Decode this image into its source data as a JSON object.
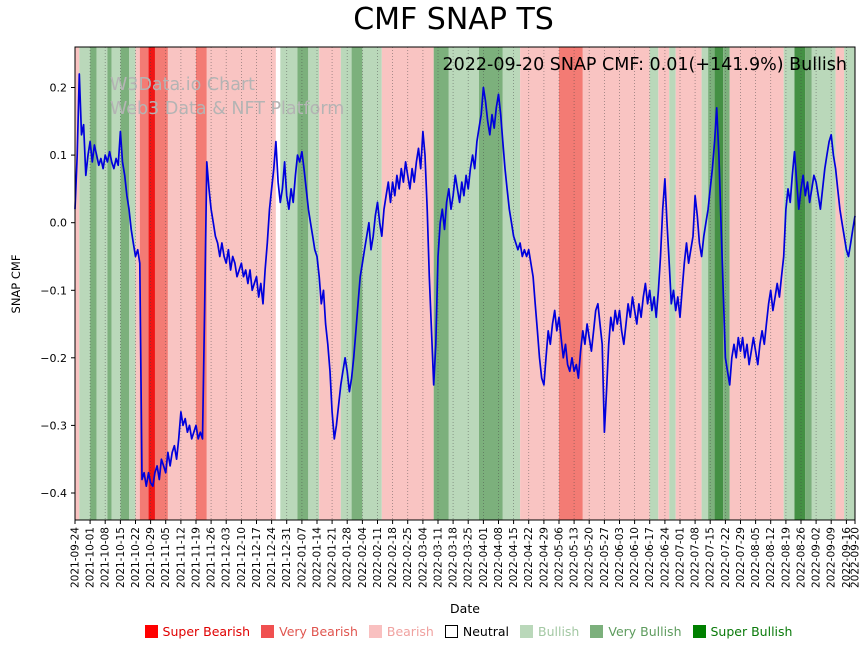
{
  "title": "CMF SNAP TS",
  "annotation": "2022-09-20 SNAP CMF: 0.01(+141.9%) Bullish",
  "watermark": {
    "line1": "W3Data.io Chart",
    "line2": "Web3 Data & NFT Platform",
    "color": "#b4b4b4"
  },
  "chart_data": {
    "type": "line",
    "title": "CMF SNAP TS",
    "xlabel": "Date",
    "ylabel": "SNAP CMF",
    "ylim": [
      -0.44,
      0.26
    ],
    "grid": "vertical-dotted-weekly",
    "line_color": "#0000dd",
    "total_days": 361,
    "y_ticks": [
      [
        "0.2",
        0.2
      ],
      [
        "0.1",
        0.1
      ],
      [
        "0.0",
        0.0
      ],
      [
        "−0.1",
        -0.1
      ],
      [
        "−0.2",
        -0.2
      ],
      [
        "−0.3",
        -0.3
      ],
      [
        "−0.4",
        -0.4
      ]
    ],
    "x_tick_days": [
      0,
      7,
      14,
      21,
      28,
      35,
      42,
      49,
      56,
      63,
      70,
      77,
      84,
      91,
      98,
      105,
      112,
      119,
      126,
      133,
      140,
      147,
      154,
      161,
      168,
      175,
      182,
      189,
      196,
      203,
      210,
      217,
      224,
      231,
      238,
      245,
      252,
      259,
      266,
      273,
      280,
      287,
      294,
      301,
      308,
      315,
      322,
      329,
      336,
      343,
      350,
      357,
      361
    ],
    "x_tick_labels": [
      "2021-09-24",
      "2021-10-01",
      "2021-10-08",
      "2021-10-15",
      "2021-10-22",
      "2021-10-29",
      "2021-11-05",
      "2021-11-12",
      "2021-11-19",
      "2021-11-26",
      "2021-12-03",
      "2021-12-10",
      "2021-12-17",
      "2021-12-24",
      "2021-12-31",
      "2022-01-07",
      "2022-01-14",
      "2022-01-21",
      "2022-01-28",
      "2022-02-04",
      "2022-02-11",
      "2022-02-18",
      "2022-02-25",
      "2022-03-04",
      "2022-03-11",
      "2022-03-18",
      "2022-03-25",
      "2022-04-01",
      "2022-04-08",
      "2022-04-15",
      "2022-04-22",
      "2022-04-29",
      "2022-05-06",
      "2022-05-13",
      "2022-05-20",
      "2022-05-27",
      "2022-06-03",
      "2022-06-10",
      "2022-06-17",
      "2022-06-24",
      "2022-07-01",
      "2022-07-08",
      "2022-07-15",
      "2022-07-22",
      "2022-07-29",
      "2022-08-05",
      "2022-08-12",
      "2022-08-19",
      "2022-08-26",
      "2022-09-02",
      "2022-09-09",
      "2022-09-16",
      "2022-09-20"
    ],
    "series": [
      {
        "name": "SNAP CMF daily",
        "x_start_day": 0,
        "values": [
          0.02,
          0.1,
          0.22,
          0.13,
          0.145,
          0.07,
          0.1,
          0.12,
          0.09,
          0.115,
          0.1,
          0.085,
          0.095,
          0.08,
          0.1,
          0.09,
          0.105,
          0.09,
          0.08,
          0.095,
          0.085,
          0.135,
          0.09,
          0.07,
          0.04,
          0.02,
          -0.01,
          -0.03,
          -0.05,
          -0.04,
          -0.06,
          -0.38,
          -0.37,
          -0.39,
          -0.37,
          -0.385,
          -0.39,
          -0.37,
          -0.36,
          -0.38,
          -0.35,
          -0.36,
          -0.37,
          -0.34,
          -0.36,
          -0.34,
          -0.33,
          -0.35,
          -0.32,
          -0.28,
          -0.3,
          -0.29,
          -0.31,
          -0.3,
          -0.32,
          -0.31,
          -0.3,
          -0.32,
          -0.31,
          -0.32,
          -0.13,
          0.09,
          0.05,
          0.02,
          0,
          -0.02,
          -0.03,
          -0.05,
          -0.03,
          -0.05,
          -0.06,
          -0.04,
          -0.07,
          -0.05,
          -0.06,
          -0.08,
          -0.07,
          -0.06,
          -0.08,
          -0.07,
          -0.09,
          -0.07,
          -0.1,
          -0.09,
          -0.08,
          -0.11,
          -0.09,
          -0.12,
          -0.07,
          -0.03,
          0.02,
          0.05,
          0.08,
          0.12,
          0.06,
          0.03,
          0.05,
          0.09,
          0.04,
          0.02,
          0.05,
          0.03,
          0.07,
          0.1,
          0.09,
          0.105,
          0.08,
          0.05,
          0.02,
          0,
          -0.02,
          -0.04,
          -0.05,
          -0.08,
          -0.12,
          -0.1,
          -0.15,
          -0.18,
          -0.22,
          -0.28,
          -0.32,
          -0.3,
          -0.27,
          -0.24,
          -0.22,
          -0.2,
          -0.22,
          -0.25,
          -0.23,
          -0.2,
          -0.16,
          -0.12,
          -0.08,
          -0.06,
          -0.04,
          -0.02,
          0,
          -0.04,
          -0.02,
          0.01,
          0.03,
          0,
          -0.02,
          0.02,
          0.04,
          0.06,
          0.03,
          0.06,
          0.04,
          0.07,
          0.05,
          0.08,
          0.06,
          0.09,
          0.07,
          0.05,
          0.08,
          0.06,
          0.09,
          0.11,
          0.08,
          0.135,
          0.1,
          0.02,
          -0.08,
          -0.16,
          -0.24,
          -0.18,
          -0.05,
          0,
          0.02,
          -0.01,
          0.03,
          0.05,
          0.02,
          0.04,
          0.07,
          0.05,
          0.03,
          0.06,
          0.04,
          0.07,
          0.05,
          0.08,
          0.1,
          0.08,
          0.12,
          0.14,
          0.16,
          0.2,
          0.18,
          0.15,
          0.13,
          0.16,
          0.14,
          0.17,
          0.19,
          0.16,
          0.12,
          0.08,
          0.05,
          0.02,
          0,
          -0.02,
          -0.03,
          -0.04,
          -0.03,
          -0.05,
          -0.04,
          -0.05,
          -0.04,
          -0.06,
          -0.08,
          -0.12,
          -0.16,
          -0.2,
          -0.23,
          -0.24,
          -0.2,
          -0.16,
          -0.18,
          -0.15,
          -0.13,
          -0.16,
          -0.14,
          -0.17,
          -0.2,
          -0.18,
          -0.21,
          -0.22,
          -0.2,
          -0.22,
          -0.21,
          -0.23,
          -0.19,
          -0.16,
          -0.18,
          -0.15,
          -0.17,
          -0.19,
          -0.16,
          -0.13,
          -0.12,
          -0.15,
          -0.18,
          -0.31,
          -0.25,
          -0.18,
          -0.14,
          -0.16,
          -0.13,
          -0.15,
          -0.13,
          -0.16,
          -0.18,
          -0.15,
          -0.12,
          -0.14,
          -0.11,
          -0.13,
          -0.15,
          -0.12,
          -0.14,
          -0.11,
          -0.09,
          -0.12,
          -0.1,
          -0.13,
          -0.11,
          -0.14,
          -0.1,
          -0.05,
          0.02,
          0.065,
          0,
          -0.06,
          -0.12,
          -0.1,
          -0.13,
          -0.11,
          -0.14,
          -0.1,
          -0.06,
          -0.03,
          -0.06,
          -0.04,
          -0.02,
          0.04,
          0.01,
          -0.03,
          -0.05,
          -0.02,
          0,
          0.02,
          0.05,
          0.08,
          0.12,
          0.17,
          0.1,
          0,
          -0.1,
          -0.2,
          -0.22,
          -0.24,
          -0.2,
          -0.18,
          -0.2,
          -0.17,
          -0.19,
          -0.17,
          -0.2,
          -0.18,
          -0.21,
          -0.19,
          -0.17,
          -0.19,
          -0.21,
          -0.18,
          -0.16,
          -0.18,
          -0.15,
          -0.12,
          -0.1,
          -0.13,
          -0.11,
          -0.09,
          -0.11,
          -0.08,
          -0.05,
          0.02,
          0.05,
          0.03,
          0.07,
          0.105,
          0.06,
          0.02,
          0.05,
          0.07,
          0.04,
          0.06,
          0.03,
          0.05,
          0.07,
          0.06,
          0.04,
          0.02,
          0.05,
          0.08,
          0.1,
          0.12,
          0.13,
          0.1,
          0.08,
          0.05,
          0.02,
          0,
          -0.02,
          -0.04,
          -0.05,
          -0.03,
          -0.01,
          0.01
        ]
      }
    ],
    "category_colors": {
      "super_bearish": "#f01515",
      "very_bearish": "#f37b74",
      "bearish": "#f9c4c2",
      "neutral": "#ffffff",
      "bullish": "#bad8ba",
      "very_bullish": "#7cb07c",
      "super_bullish": "#449044"
    },
    "sentiment_bands": [
      [
        "bearish",
        0,
        2
      ],
      [
        "bullish",
        2,
        7
      ],
      [
        "very_bullish",
        7,
        10
      ],
      [
        "bullish",
        10,
        15
      ],
      [
        "very_bullish",
        15,
        17
      ],
      [
        "bullish",
        17,
        21
      ],
      [
        "very_bullish",
        21,
        25
      ],
      [
        "bullish",
        25,
        28
      ],
      [
        "bearish",
        28,
        30
      ],
      [
        "very_bearish",
        30,
        34
      ],
      [
        "super_bearish",
        34,
        37
      ],
      [
        "very_bearish",
        37,
        43
      ],
      [
        "bearish",
        43,
        56
      ],
      [
        "very_bearish",
        56,
        61
      ],
      [
        "bearish",
        61,
        93
      ],
      [
        "neutral",
        93,
        95
      ],
      [
        "bullish",
        95,
        103
      ],
      [
        "very_bullish",
        103,
        108
      ],
      [
        "bullish",
        108,
        113
      ],
      [
        "bearish",
        113,
        123
      ],
      [
        "bullish",
        123,
        128
      ],
      [
        "very_bullish",
        128,
        133
      ],
      [
        "bullish",
        133,
        142
      ],
      [
        "bearish",
        142,
        166
      ],
      [
        "very_bullish",
        166,
        173
      ],
      [
        "bullish",
        173,
        187
      ],
      [
        "very_bullish",
        187,
        198
      ],
      [
        "bullish",
        198,
        206
      ],
      [
        "bearish",
        206,
        224
      ],
      [
        "very_bearish",
        224,
        235
      ],
      [
        "bearish",
        235,
        266
      ],
      [
        "bullish",
        266,
        270
      ],
      [
        "bearish",
        270,
        275
      ],
      [
        "bullish",
        275,
        278
      ],
      [
        "bearish",
        278,
        290
      ],
      [
        "bullish",
        290,
        293
      ],
      [
        "very_bullish",
        293,
        296
      ],
      [
        "super_bullish",
        296,
        300
      ],
      [
        "very_bullish",
        300,
        303
      ],
      [
        "bearish",
        303,
        328
      ],
      [
        "bullish",
        328,
        333
      ],
      [
        "super_bullish",
        333,
        338
      ],
      [
        "very_bullish",
        338,
        341
      ],
      [
        "bullish",
        341,
        352
      ],
      [
        "bearish",
        352,
        356
      ],
      [
        "bullish",
        356,
        361
      ]
    ],
    "legend": [
      {
        "label": "Super Bearish",
        "color": "#ff0000",
        "text_color": "#e00000",
        "outlined": false
      },
      {
        "label": "Very Bearish",
        "color": "#f05050",
        "text_color": "#e0554f",
        "outlined": false
      },
      {
        "label": "Bearish",
        "color": "#f9c0c0",
        "text_color": "#f0a2a0",
        "outlined": false
      },
      {
        "label": "Neutral",
        "color": "#ffffff",
        "text_color": "#000000",
        "outlined": true
      },
      {
        "label": "Bullish",
        "color": "#bad8ba",
        "text_color": "#a3c8a3",
        "outlined": false
      },
      {
        "label": "Very Bullish",
        "color": "#7cb07c",
        "text_color": "#5d9b5d",
        "outlined": false
      },
      {
        "label": "Super Bullish",
        "color": "#008000",
        "text_color": "#0a7a0a",
        "outlined": false
      }
    ]
  }
}
